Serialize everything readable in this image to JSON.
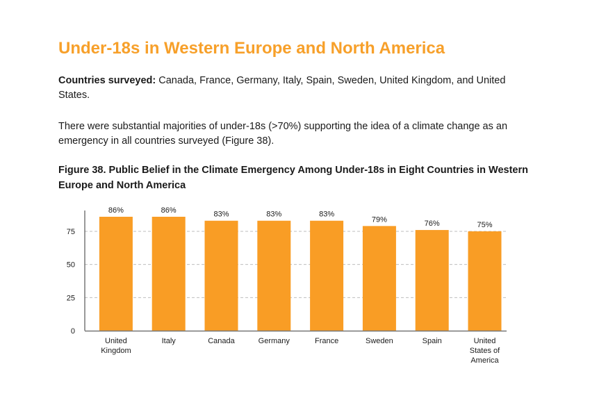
{
  "heading": "Under-18s in Western Europe and North America",
  "countries_surveyed": {
    "label": "Countries surveyed:",
    "text": " Canada, France, Germany, Italy, Spain, Sweden, United Kingdom, and United States."
  },
  "summary": "There were substantial majorities of under-18s (>70%) supporting the idea of a climate change as an emergency in all countries surveyed (Figure 38).",
  "colors": {
    "accent": "#f7a02a",
    "bar": "#f99d25",
    "grid": "#bdbdbd",
    "axis": "#333333"
  },
  "chart_data": {
    "type": "bar",
    "title": "Figure 38. Public Belief in the Climate Emergency Among Under-18s in Eight Countries in Western Europe and North America",
    "xlabel": "",
    "ylabel": "",
    "categories": [
      "United Kingdom",
      "Italy",
      "Canada",
      "Germany",
      "France",
      "Sweden",
      "Spain",
      "United States of America"
    ],
    "category_lines": [
      [
        "United",
        "Kingdom"
      ],
      [
        "Italy"
      ],
      [
        "Canada"
      ],
      [
        "Germany"
      ],
      [
        "France"
      ],
      [
        "Sweden"
      ],
      [
        "Spain"
      ],
      [
        "United",
        "States of",
        "America"
      ]
    ],
    "values": [
      86,
      86,
      83,
      83,
      83,
      79,
      76,
      75
    ],
    "data_labels": [
      "86%",
      "86%",
      "83%",
      "83%",
      "83%",
      "79%",
      "76%",
      "75%"
    ],
    "yticks": [
      0,
      25,
      50,
      75
    ],
    "ylim": [
      0,
      100
    ],
    "grid": true,
    "grid_style": "dashed-horizontal",
    "legend": "none"
  }
}
